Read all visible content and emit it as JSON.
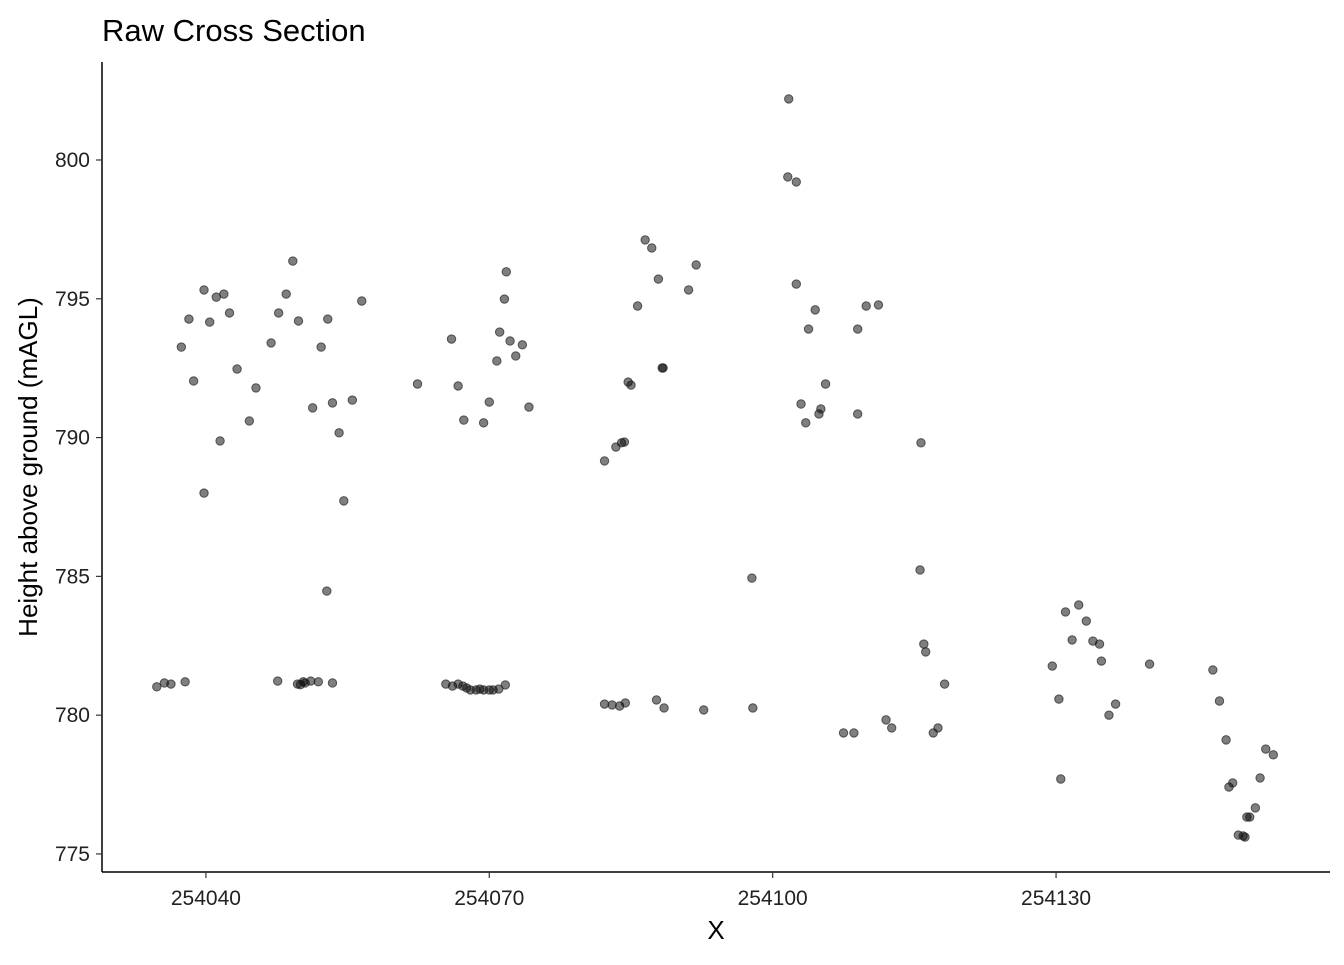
{
  "chart_data": {
    "type": "scatter",
    "title": "Raw Cross Section",
    "xlabel": "X",
    "ylabel": "Height above ground (mAGL)",
    "xlim": [
      254029.0,
      254159.0
    ],
    "ylim": [
      774.35,
      803.53
    ],
    "xticks": [
      254040,
      254070,
      254100,
      254130
    ],
    "yticks": [
      775,
      780,
      785,
      790,
      795,
      800
    ],
    "grid": false,
    "point_color": "#000000",
    "point_opacity": 0.5,
    "points": [
      [
        254037.4,
        793.26
      ],
      [
        254038.2,
        794.27
      ],
      [
        254038.7,
        792.04
      ],
      [
        254039.8,
        795.32
      ],
      [
        254039.8,
        788.0
      ],
      [
        254040.4,
        794.16
      ],
      [
        254041.1,
        795.06
      ],
      [
        254041.5,
        789.88
      ],
      [
        254041.9,
        795.17
      ],
      [
        254042.5,
        794.49
      ],
      [
        254043.3,
        792.47
      ],
      [
        254044.6,
        790.6
      ],
      [
        254045.3,
        791.79
      ],
      [
        254046.9,
        793.41
      ],
      [
        254047.7,
        794.49
      ],
      [
        254048.5,
        795.17
      ],
      [
        254049.2,
        796.36
      ],
      [
        254049.8,
        794.2
      ],
      [
        254051.3,
        791.07
      ],
      [
        254052.2,
        793.26
      ],
      [
        254052.8,
        784.47
      ],
      [
        254052.9,
        794.27
      ],
      [
        254053.4,
        791.25
      ],
      [
        254054.1,
        790.17
      ],
      [
        254054.6,
        787.72
      ],
      [
        254055.5,
        791.35
      ],
      [
        254056.5,
        794.92
      ],
      [
        254034.8,
        781.02
      ],
      [
        254035.6,
        781.16
      ],
      [
        254036.3,
        781.12
      ],
      [
        254037.8,
        781.2
      ],
      [
        254047.6,
        781.23
      ],
      [
        254049.7,
        781.12
      ],
      [
        254050.0,
        781.1
      ],
      [
        254050.3,
        781.2
      ],
      [
        254050.5,
        781.16
      ],
      [
        254051.1,
        781.23
      ],
      [
        254051.9,
        781.2
      ],
      [
        254053.4,
        781.16
      ],
      [
        254062.4,
        791.93
      ],
      [
        254066.0,
        793.55
      ],
      [
        254066.7,
        791.86
      ],
      [
        254067.3,
        790.63
      ],
      [
        254069.4,
        790.53
      ],
      [
        254070.0,
        791.28
      ],
      [
        254070.8,
        792.76
      ],
      [
        254071.1,
        793.8
      ],
      [
        254071.6,
        794.99
      ],
      [
        254071.8,
        795.97
      ],
      [
        254072.2,
        793.48
      ],
      [
        254072.8,
        792.94
      ],
      [
        254073.5,
        793.34
      ],
      [
        254074.2,
        791.1
      ],
      [
        254065.4,
        781.12
      ],
      [
        254066.1,
        781.05
      ],
      [
        254066.7,
        781.12
      ],
      [
        254067.2,
        781.05
      ],
      [
        254067.6,
        780.98
      ],
      [
        254068.0,
        780.91
      ],
      [
        254068.6,
        780.91
      ],
      [
        254069.0,
        780.94
      ],
      [
        254069.4,
        780.91
      ],
      [
        254070.0,
        780.91
      ],
      [
        254070.4,
        780.91
      ],
      [
        254071.0,
        780.94
      ],
      [
        254071.7,
        781.09
      ],
      [
        254082.2,
        789.16
      ],
      [
        254083.4,
        789.66
      ],
      [
        254084.0,
        789.81
      ],
      [
        254084.3,
        789.84
      ],
      [
        254084.7,
        792.0
      ],
      [
        254085.0,
        791.89
      ],
      [
        254085.7,
        794.74
      ],
      [
        254086.5,
        797.12
      ],
      [
        254087.2,
        796.83
      ],
      [
        254087.9,
        795.71
      ],
      [
        254088.3,
        792.51
      ],
      [
        254088.4,
        792.51
      ],
      [
        254091.1,
        795.32
      ],
      [
        254091.9,
        796.22
      ],
      [
        254097.8,
        784.94
      ],
      [
        254082.2,
        780.4
      ],
      [
        254083.0,
        780.37
      ],
      [
        254083.8,
        780.33
      ],
      [
        254084.4,
        780.44
      ],
      [
        254087.7,
        780.55
      ],
      [
        254088.5,
        780.26
      ],
      [
        254092.7,
        780.19
      ],
      [
        254097.9,
        780.26
      ],
      [
        254101.7,
        802.2
      ],
      [
        254101.6,
        799.39
      ],
      [
        254102.5,
        799.21
      ],
      [
        254102.5,
        795.53
      ],
      [
        254103.0,
        791.21
      ],
      [
        254103.5,
        790.53
      ],
      [
        254103.8,
        793.91
      ],
      [
        254104.5,
        794.6
      ],
      [
        254104.9,
        790.85
      ],
      [
        254105.1,
        791.03
      ],
      [
        254105.6,
        791.93
      ],
      [
        254107.5,
        779.36
      ],
      [
        254108.6,
        779.36
      ],
      [
        254109.0,
        793.91
      ],
      [
        254109.0,
        790.85
      ],
      [
        254109.9,
        794.74
      ],
      [
        254111.2,
        794.78
      ],
      [
        254112.0,
        779.83
      ],
      [
        254112.6,
        779.54
      ],
      [
        254115.7,
        789.81
      ],
      [
        254115.6,
        785.23
      ],
      [
        254116.0,
        782.56
      ],
      [
        254116.2,
        782.28
      ],
      [
        254117.0,
        779.36
      ],
      [
        254117.5,
        779.54
      ],
      [
        254118.2,
        781.12
      ],
      [
        254129.6,
        781.77
      ],
      [
        254130.3,
        780.58
      ],
      [
        254130.5,
        777.7
      ],
      [
        254131.0,
        783.72
      ],
      [
        254131.7,
        782.71
      ],
      [
        254132.4,
        783.97
      ],
      [
        254133.2,
        783.39
      ],
      [
        254133.9,
        782.67
      ],
      [
        254134.6,
        782.56
      ],
      [
        254134.8,
        781.95
      ],
      [
        254135.6,
        780.0
      ],
      [
        254136.3,
        780.4
      ],
      [
        254139.9,
        781.84
      ],
      [
        254146.6,
        781.63
      ],
      [
        254147.3,
        780.51
      ],
      [
        254148.0,
        779.11
      ],
      [
        254148.3,
        777.41
      ],
      [
        254148.7,
        777.56
      ],
      [
        254149.3,
        775.68
      ],
      [
        254149.8,
        775.65
      ],
      [
        254150.0,
        775.61
      ],
      [
        254150.2,
        776.33
      ],
      [
        254150.5,
        776.33
      ],
      [
        254151.1,
        776.66
      ],
      [
        254151.6,
        777.74
      ],
      [
        254152.2,
        778.78
      ],
      [
        254153.0,
        778.57
      ]
    ]
  }
}
